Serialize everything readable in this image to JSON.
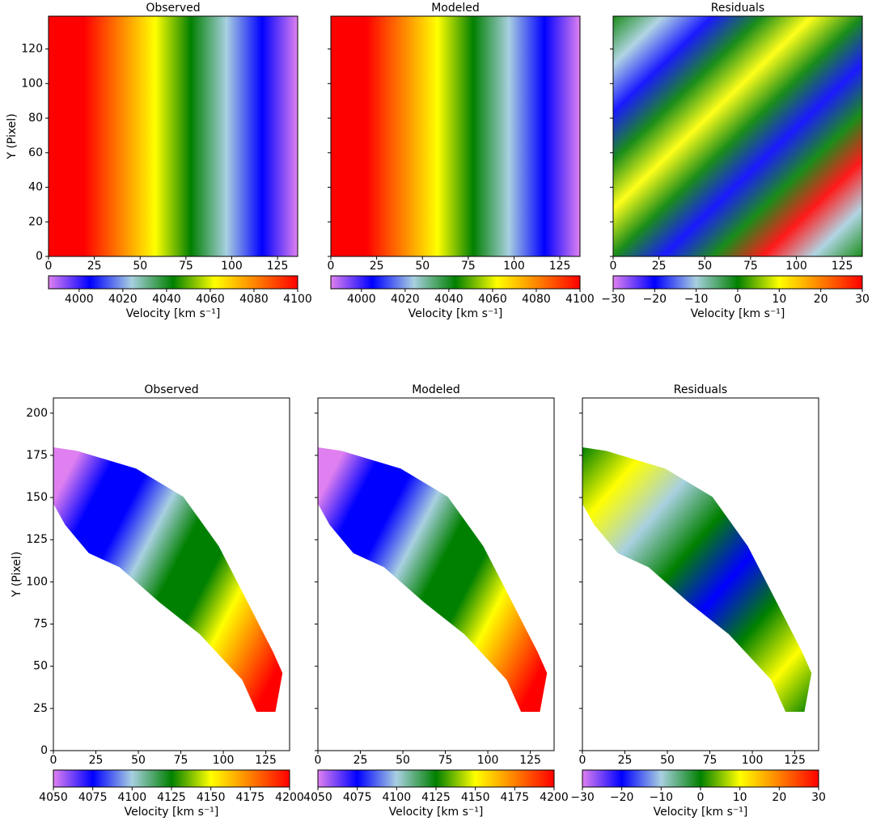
{
  "chart_data": [
    {
      "type": "heatmap",
      "title": "Observed",
      "ylabel": "Y (Pixel)",
      "xlim": [
        0,
        136
      ],
      "ylim": [
        0,
        139
      ],
      "xticks": [
        0,
        25,
        50,
        75,
        100,
        125
      ],
      "yticks": [
        0,
        20,
        40,
        60,
        80,
        100,
        120
      ],
      "ytick_labels": true,
      "shape": "field",
      "colormap": [
        "#e080f0",
        "#0000ff",
        "#a8d0e0",
        "#008000",
        "#ffff00",
        "#ff8000",
        "#ff0000"
      ],
      "colorbar": {
        "label": "Velocity [km s⁻¹]",
        "lim": [
          3986,
          4100
        ],
        "ticks": [
          4000,
          4020,
          4040,
          4060,
          4080,
          4100
        ]
      }
    },
    {
      "type": "heatmap",
      "title": "Modeled",
      "xlim": [
        0,
        136
      ],
      "ylim": [
        0,
        139
      ],
      "xticks": [
        0,
        25,
        50,
        75,
        100,
        125
      ],
      "yticks": [
        0,
        20,
        40,
        60,
        80,
        100,
        120
      ],
      "ytick_labels": false,
      "shape": "field",
      "colormap": [
        "#e080f0",
        "#0000ff",
        "#a8d0e0",
        "#008000",
        "#ffff00",
        "#ff8000",
        "#ff0000"
      ],
      "colorbar": {
        "label": "Velocity [km s⁻¹]",
        "lim": [
          3986,
          4100
        ],
        "ticks": [
          4000,
          4020,
          4040,
          4060,
          4080,
          4100
        ]
      }
    },
    {
      "type": "heatmap",
      "title": "Residuals",
      "xlim": [
        0,
        136
      ],
      "ylim": [
        0,
        139
      ],
      "xticks": [
        0,
        25,
        50,
        75,
        100,
        125
      ],
      "yticks": [
        0,
        20,
        40,
        60,
        80,
        100,
        120
      ],
      "ytick_labels": false,
      "shape": "field-residual",
      "colormap": [
        "#e080f0",
        "#0000ff",
        "#a8d0e0",
        "#008000",
        "#ffff00",
        "#ff8000",
        "#ff0000"
      ],
      "colorbar": {
        "label": "Velocity [km s⁻¹]",
        "lim": [
          -30,
          30
        ],
        "ticks": [
          {
            "value": -30,
            "label": "−30"
          },
          {
            "value": -20,
            "label": "−20"
          },
          {
            "value": -10,
            "label": "−10"
          },
          0,
          10,
          20,
          30
        ]
      }
    },
    {
      "type": "heatmap",
      "title": "Observed",
      "ylabel": "Y (Pixel)",
      "xlim": [
        0,
        139
      ],
      "ylim": [
        0,
        209
      ],
      "xticks": [
        0,
        25,
        50,
        75,
        100,
        125
      ],
      "yticks": [
        0,
        25,
        50,
        75,
        100,
        125,
        150,
        175,
        200
      ],
      "ytick_labels": true,
      "shape": "band",
      "colormap": [
        "#e080f0",
        "#0000ff",
        "#a8d0e0",
        "#008000",
        "#ffff00",
        "#ff8000",
        "#ff0000"
      ],
      "colorbar": {
        "label": "Velocity [km s⁻¹]",
        "lim": [
          4050,
          4200
        ],
        "ticks": [
          4050,
          4075,
          4100,
          4125,
          4150,
          4175,
          4200
        ]
      }
    },
    {
      "type": "heatmap",
      "title": "Modeled",
      "xlim": [
        0,
        139
      ],
      "ylim": [
        0,
        209
      ],
      "xticks": [
        0,
        25,
        50,
        75,
        100,
        125
      ],
      "yticks": [
        0,
        25,
        50,
        75,
        100,
        125,
        150,
        175,
        200
      ],
      "ytick_labels": false,
      "shape": "band",
      "colormap": [
        "#e080f0",
        "#0000ff",
        "#a8d0e0",
        "#008000",
        "#ffff00",
        "#ff8000",
        "#ff0000"
      ],
      "colorbar": {
        "label": "Velocity [km s⁻¹]",
        "lim": [
          4050,
          4200
        ],
        "ticks": [
          4050,
          4075,
          4100,
          4125,
          4150,
          4175,
          4200
        ]
      }
    },
    {
      "type": "heatmap",
      "title": "Residuals",
      "xlim": [
        0,
        139
      ],
      "ylim": [
        0,
        209
      ],
      "xticks": [
        0,
        25,
        50,
        75,
        100,
        125
      ],
      "yticks": [
        0,
        25,
        50,
        75,
        100,
        125,
        150,
        175,
        200
      ],
      "ytick_labels": false,
      "shape": "band-residual",
      "colormap": [
        "#e080f0",
        "#0000ff",
        "#a8d0e0",
        "#008000",
        "#ffff00",
        "#ff8000",
        "#ff0000"
      ],
      "colorbar": {
        "label": "Velocity [km s⁻¹]",
        "lim": [
          -30,
          30
        ],
        "ticks": [
          {
            "value": -30,
            "label": "−30"
          },
          {
            "value": -20,
            "label": "−20"
          },
          {
            "value": -10,
            "label": "−10"
          },
          0,
          10,
          20,
          30
        ]
      }
    }
  ]
}
